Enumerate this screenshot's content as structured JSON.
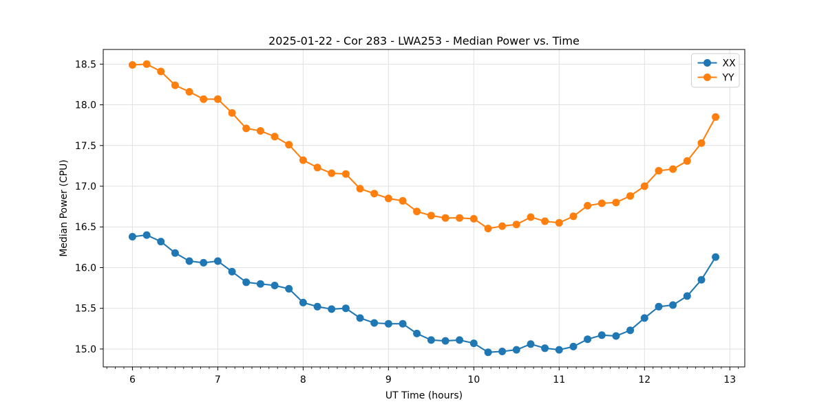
{
  "chart_data": {
    "type": "line",
    "title": "2025-01-22 - Cor 283 - LWA253 - Median Power vs. Time",
    "xlabel": "UT Time (hours)",
    "ylabel": "Median Power (CPU)",
    "xlim": [
      5.658,
      13.175
    ],
    "ylim": [
      14.78,
      18.68
    ],
    "xticks": [
      6,
      7,
      8,
      9,
      10,
      11,
      12,
      13
    ],
    "yticks": [
      15.0,
      15.5,
      16.0,
      16.5,
      17.0,
      17.5,
      18.0,
      18.5
    ],
    "minor_xtick_step": 0.1,
    "grid": true,
    "grid_color": "#e0e0e0",
    "legend_position": "upper right",
    "marker": "circle",
    "x": [
      6.0,
      6.167,
      6.333,
      6.5,
      6.667,
      6.833,
      7.0,
      7.167,
      7.333,
      7.5,
      7.667,
      7.833,
      8.0,
      8.167,
      8.333,
      8.5,
      8.667,
      8.833,
      9.0,
      9.167,
      9.333,
      9.5,
      9.667,
      9.833,
      10.0,
      10.167,
      10.333,
      10.5,
      10.667,
      10.833,
      11.0,
      11.167,
      11.333,
      11.5,
      11.667,
      11.833,
      12.0,
      12.167,
      12.333,
      12.5,
      12.667,
      12.833
    ],
    "series": [
      {
        "name": "XX",
        "color": "#1f77b4",
        "values": [
          16.38,
          16.4,
          16.32,
          16.18,
          16.08,
          16.06,
          16.08,
          15.95,
          15.82,
          15.8,
          15.78,
          15.74,
          15.57,
          15.52,
          15.49,
          15.5,
          15.38,
          15.32,
          15.31,
          15.31,
          15.19,
          15.11,
          15.1,
          15.11,
          15.07,
          14.96,
          14.97,
          14.99,
          15.06,
          15.01,
          14.99,
          15.03,
          15.12,
          15.17,
          15.16,
          15.23,
          15.38,
          15.52,
          15.54,
          15.65,
          15.85,
          16.13
        ]
      },
      {
        "name": "YY",
        "color": "#ff7f0e",
        "values": [
          18.49,
          18.5,
          18.41,
          18.24,
          18.16,
          18.07,
          18.07,
          17.9,
          17.71,
          17.68,
          17.61,
          17.51,
          17.32,
          17.23,
          17.16,
          17.15,
          16.97,
          16.91,
          16.85,
          16.82,
          16.69,
          16.64,
          16.61,
          16.61,
          16.6,
          16.48,
          16.51,
          16.53,
          16.62,
          16.57,
          16.55,
          16.63,
          16.76,
          16.79,
          16.8,
          16.88,
          17.0,
          17.19,
          17.21,
          17.31,
          17.53,
          17.85
        ]
      }
    ]
  }
}
